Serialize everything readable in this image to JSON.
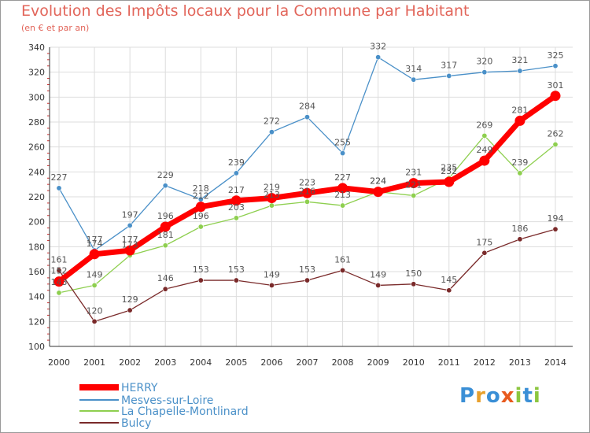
{
  "title": "Evolution des Impôts locaux pour la Commune par Habitant",
  "subtitle": "(en € et par an)",
  "logo": {
    "text": "Proxiti",
    "letters": [
      "P",
      "r",
      "o",
      "x",
      "i",
      "t",
      "i"
    ],
    "colors": [
      "#3a8fd6",
      "#e8a02c",
      "#3a8fd6",
      "#e85a1e",
      "#8cc63f",
      "#3a8fd6",
      "#8cc63f"
    ]
  },
  "chart_data": {
    "type": "line",
    "title": "Evolution des Impôts locaux pour la Commune par Habitant",
    "subtitle": "(en € et par an)",
    "xlabel": "",
    "ylabel": "",
    "x": [
      "2000",
      "2001",
      "2002",
      "2003",
      "2004",
      "2005",
      "2006",
      "2007",
      "2008",
      "2009",
      "2010",
      "2011",
      "2012",
      "2013",
      "2014"
    ],
    "ylim": [
      100,
      340
    ],
    "yticks": [
      100,
      120,
      140,
      160,
      180,
      200,
      220,
      240,
      260,
      280,
      300,
      320,
      340
    ],
    "grid": true,
    "legend": "bottom-left",
    "series": [
      {
        "name": "HERRY",
        "color": "#ff0000",
        "values": [
          152,
          174,
          177,
          196,
          212,
          217,
          219,
          223,
          227,
          224,
          231,
          232,
          249,
          281,
          301
        ]
      },
      {
        "name": "Mesves-sur-Loire",
        "color": "#4a90c8",
        "values": [
          227,
          177,
          197,
          229,
          218,
          239,
          272,
          284,
          255,
          332,
          314,
          317,
          320,
          321,
          325
        ]
      },
      {
        "name": "La Chapelle-Montlinard",
        "color": "#8ecf4f",
        "values": [
          143,
          149,
          173,
          181,
          196,
          203,
          213,
          216,
          213,
          224,
          221,
          235,
          269,
          239,
          262
        ]
      },
      {
        "name": "Bulcy",
        "color": "#7a2a2a",
        "values": [
          161,
          120,
          129,
          146,
          153,
          153,
          149,
          153,
          161,
          149,
          150,
          145,
          175,
          186,
          194
        ]
      }
    ]
  }
}
